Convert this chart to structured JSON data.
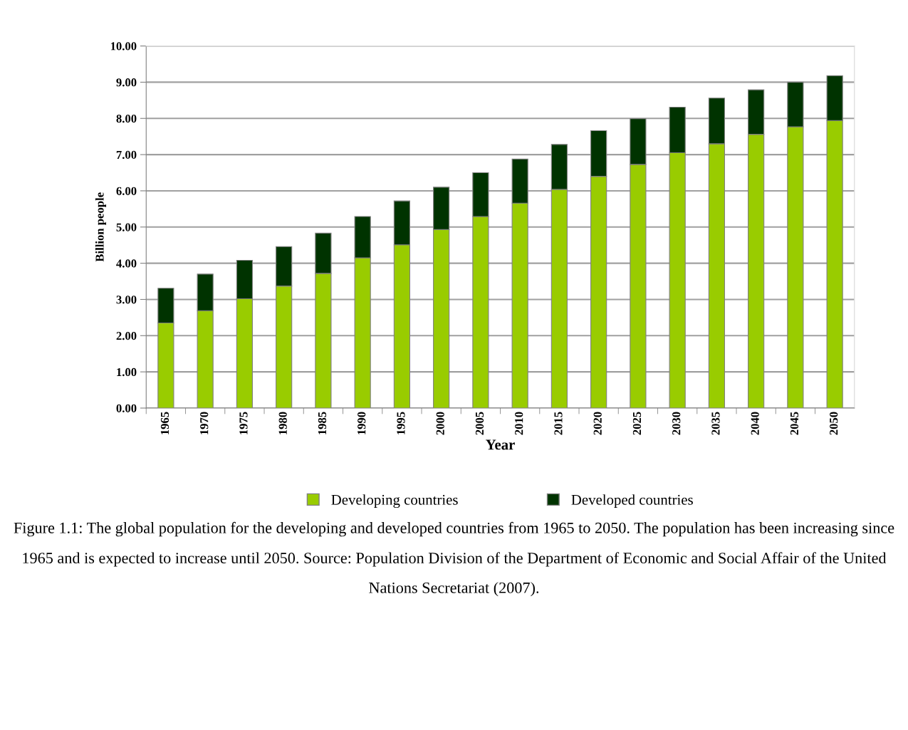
{
  "chart_data": {
    "type": "bar",
    "stacked": true,
    "xlabel": "Year",
    "ylabel": "Billion people",
    "categories": [
      "1965",
      "1970",
      "1975",
      "1980",
      "1985",
      "1990",
      "1995",
      "2000",
      "2005",
      "2010",
      "2015",
      "2020",
      "2025",
      "2030",
      "2035",
      "2040",
      "2045",
      "2050"
    ],
    "series": [
      {
        "name": "Developing countries",
        "color": "#99cc00",
        "values": [
          2.35,
          2.69,
          3.02,
          3.37,
          3.72,
          4.15,
          4.51,
          4.93,
          5.29,
          5.66,
          6.04,
          6.4,
          6.73,
          7.05,
          7.3,
          7.56,
          7.77,
          7.94
        ]
      },
      {
        "name": "Developed countries",
        "color": "#003300",
        "values": [
          0.96,
          1.01,
          1.06,
          1.09,
          1.11,
          1.14,
          1.21,
          1.17,
          1.21,
          1.22,
          1.24,
          1.26,
          1.26,
          1.26,
          1.26,
          1.23,
          1.23,
          1.24
        ]
      }
    ],
    "ylim": [
      0,
      10
    ],
    "yticks": [
      {
        "value": 0,
        "label": "0.00"
      },
      {
        "value": 1,
        "label": "1.00"
      },
      {
        "value": 2,
        "label": "2.00"
      },
      {
        "value": 3,
        "label": "3.00"
      },
      {
        "value": 4,
        "label": "4.00"
      },
      {
        "value": 5,
        "label": "5.00"
      },
      {
        "value": 6,
        "label": "6.00"
      },
      {
        "value": 7,
        "label": "7.00"
      },
      {
        "value": 8,
        "label": "8.00"
      },
      {
        "value": 9,
        "label": "9.00"
      },
      {
        "value": 10,
        "label": "10.00"
      }
    ],
    "grid": "y",
    "legend": "bottom",
    "annotations": [
      "Figure 1.1: The global population for the developing and developed countries from 1965 to 2050. The population has been increasing since 1965 and is expected to increase until 2050. Source: Population Division of the Department of Economic and Social Affair of the United Nations Secretariat (2007)."
    ]
  }
}
